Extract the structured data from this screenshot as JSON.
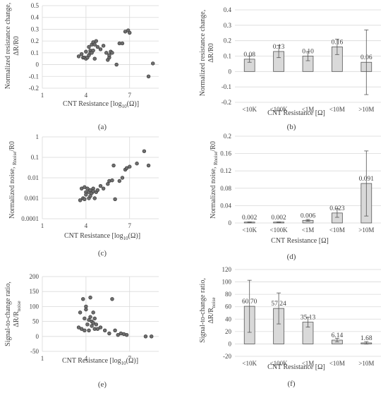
{
  "chart_data": [
    {
      "panel": "(a)",
      "type": "scatter",
      "xlabel": "CNT Resistance [log10(Ω)]",
      "ylabel": [
        "Normalized resistance change,",
        "ΔR/R0"
      ],
      "xlim": [
        1,
        9
      ],
      "ylim": [
        -0.2,
        0.5
      ],
      "xticks": [
        "1",
        "4",
        "7"
      ],
      "yticks": [
        "-0.2",
        "-0.1",
        "0",
        "0.1",
        "0.2",
        "0.3",
        "0.4",
        "0.5"
      ],
      "x": [
        3.5,
        3.7,
        3.8,
        3.9,
        4.0,
        4.0,
        4.1,
        4.2,
        4.2,
        4.3,
        4.3,
        4.4,
        4.4,
        4.5,
        4.5,
        4.6,
        4.6,
        4.7,
        4.8,
        5.0,
        5.2,
        5.4,
        5.5,
        5.6,
        5.6,
        5.7,
        5.8,
        6.1,
        6.3,
        6.5,
        6.7,
        6.9,
        7.0,
        8.3,
        8.6
      ],
      "y": [
        0.07,
        0.09,
        0.06,
        0.06,
        0.05,
        0.11,
        0.06,
        0.15,
        0.08,
        0.12,
        0.1,
        0.1,
        0.17,
        0.12,
        0.19,
        0.05,
        0.17,
        0.2,
        0.15,
        0.13,
        0.16,
        0.1,
        0.04,
        0.06,
        0.08,
        0.11,
        0.1,
        0.0,
        0.18,
        0.18,
        0.28,
        0.29,
        0.27,
        -0.1,
        0.01
      ],
      "grid": true
    },
    {
      "panel": "(b)",
      "type": "bar",
      "xlabel": "CNT Resistance [Ω]",
      "ylabel": [
        "Normalized resistance change,",
        "ΔR/R0"
      ],
      "categories": [
        "<10K",
        "<100K",
        "<1M",
        "<10M",
        ">10M"
      ],
      "values": [
        0.08,
        0.13,
        0.1,
        0.16,
        0.06
      ],
      "labels": [
        "0.08",
        "0.13",
        "0.10",
        "0.16",
        "0.06"
      ],
      "errors": [
        0.02,
        0.04,
        0.03,
        0.05,
        0.21
      ],
      "ylim": [
        -0.2,
        0.4
      ],
      "yticks": [
        "-0.2",
        "-0.1",
        "0",
        "0.1",
        "0.2",
        "0.3",
        "0.4"
      ]
    },
    {
      "panel": "(c)",
      "type": "scatter",
      "xlabel": "CNT Resistance [log10(Ω)]",
      "ylabel": [
        "Normalized noise, ",
        "Rnoise",
        "/R0"
      ],
      "xlim": [
        1,
        9
      ],
      "ylim": [
        0.0001,
        1
      ],
      "yscale": "log",
      "xticks": [
        "1",
        "4",
        "7"
      ],
      "yticks": [
        "1",
        "0.1",
        "0.01",
        "0.001",
        "0.0001"
      ],
      "x": [
        3.6,
        3.7,
        3.8,
        3.9,
        3.9,
        4.0,
        4.0,
        4.1,
        4.2,
        4.2,
        4.3,
        4.3,
        4.4,
        4.5,
        4.5,
        4.6,
        4.7,
        4.8,
        5.0,
        5.2,
        5.5,
        5.6,
        5.8,
        5.9,
        6.0,
        6.3,
        6.5,
        6.7,
        6.8,
        7.0,
        7.5,
        8.0,
        8.3
      ],
      "y": [
        0.0008,
        0.003,
        0.001,
        0.0035,
        0.0009,
        0.002,
        0.0015,
        0.003,
        0.001,
        0.002,
        0.0025,
        0.0013,
        0.0018,
        0.003,
        0.0022,
        0.001,
        0.002,
        0.0025,
        0.004,
        0.003,
        0.005,
        0.007,
        0.0075,
        0.04,
        0.0009,
        0.007,
        0.01,
        0.025,
        0.03,
        0.035,
        0.05,
        0.2,
        0.04
      ],
      "grid": true
    },
    {
      "panel": "(d)",
      "type": "bar",
      "xlabel": "CNT Resistance [Ω]",
      "ylabel": [
        "Normalized noise, ",
        "Rnoise",
        "/R0"
      ],
      "categories": [
        "<10K",
        "<100K",
        "<1M",
        "<10M",
        ">10M"
      ],
      "values": [
        0.002,
        0.002,
        0.006,
        0.023,
        0.091
      ],
      "labels": [
        "0.002",
        "0.002",
        "0.006",
        "0.023",
        "0.091"
      ],
      "errors": [
        0.0005,
        0.0005,
        0.002,
        0.01,
        0.075
      ],
      "ylim": [
        0,
        0.2
      ],
      "yticks": [
        "0",
        "0.04",
        "0.08",
        "0.12",
        "0.16",
        "0.2"
      ]
    },
    {
      "panel": "(e)",
      "type": "scatter",
      "xlabel": "CNT Resistance [log10(Ω)]",
      "ylabel": [
        "Signal-to-change ratio,",
        "ΔR/R",
        "noise"
      ],
      "xlim": [
        1,
        9
      ],
      "ylim": [
        -50,
        200
      ],
      "xticks": [
        "1",
        "4",
        "7"
      ],
      "yticks": [
        "-50",
        "0",
        "50",
        "100",
        "150",
        "200"
      ],
      "x": [
        3.5,
        3.6,
        3.7,
        3.8,
        3.9,
        3.9,
        4.0,
        4.0,
        4.1,
        4.2,
        4.2,
        4.3,
        4.3,
        4.4,
        4.4,
        4.5,
        4.5,
        4.6,
        4.6,
        4.7,
        4.8,
        5.0,
        5.3,
        5.6,
        5.8,
        6.0,
        6.2,
        6.4,
        6.6,
        6.8,
        8.1,
        8.5
      ],
      "y": [
        30,
        80,
        25,
        125,
        60,
        20,
        90,
        100,
        40,
        55,
        20,
        130,
        65,
        35,
        50,
        45,
        80,
        25,
        60,
        40,
        25,
        30,
        20,
        10,
        125,
        20,
        5,
        10,
        8,
        5,
        0,
        0
      ],
      "grid": true
    },
    {
      "panel": "(f)",
      "type": "bar",
      "xlabel": "CNT Resistance [Ω]",
      "ylabel": [
        "Signal-to-change ratio,",
        "ΔR/R",
        "noise"
      ],
      "categories": [
        "<10K",
        "<100K",
        "<1M",
        "<10M",
        ">10M"
      ],
      "values": [
        60.7,
        57.24,
        35.13,
        6.14,
        1.68
      ],
      "labels": [
        "60.70",
        "57.24",
        "35.13",
        "6.14",
        "1.68"
      ],
      "errors": [
        42,
        25,
        8,
        3,
        2
      ],
      "ylim": [
        -20,
        120
      ],
      "yticks": [
        "-20",
        "0",
        "20",
        "40",
        "60",
        "80",
        "100",
        "120"
      ]
    }
  ]
}
